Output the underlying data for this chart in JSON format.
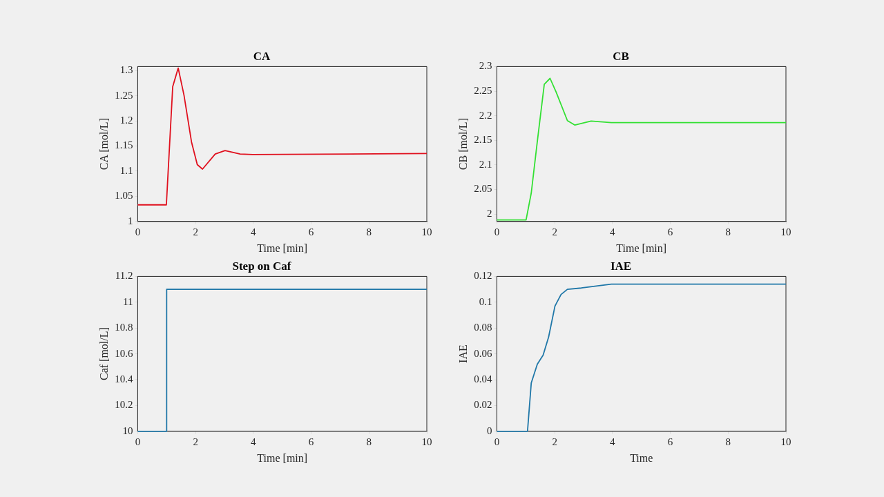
{
  "chart_data": [
    {
      "type": "line",
      "title": "CA",
      "xlabel": "Time [min]",
      "ylabel": "CA [mol/L]",
      "color": "#e0101e",
      "x": [
        0,
        0.99,
        1.21,
        1.4,
        1.6,
        1.86,
        2.06,
        2.24,
        2.68,
        3.02,
        3.54,
        3.97,
        10
      ],
      "values": [
        1.033,
        1.033,
        1.268,
        1.305,
        1.251,
        1.158,
        1.113,
        1.104,
        1.134,
        1.141,
        1.134,
        1.133,
        1.135
      ],
      "xlim": [
        0,
        10
      ],
      "ylim": [
        1,
        1.308
      ],
      "xticks": [
        0,
        2,
        4,
        6,
        8,
        10
      ],
      "yticks": [
        1,
        1.05,
        1.1,
        1.15,
        1.2,
        1.25,
        1.3
      ]
    },
    {
      "type": "line",
      "title": "CB",
      "xlabel": "Time [min]",
      "ylabel": "CB [mol/L]",
      "color": "#33e033",
      "x": [
        0,
        1.01,
        1.19,
        1.4,
        1.64,
        1.84,
        2.05,
        2.44,
        2.7,
        3.26,
        3.96,
        10
      ],
      "values": [
        1.988,
        1.988,
        2.043,
        2.148,
        2.264,
        2.276,
        2.248,
        2.19,
        2.181,
        2.189,
        2.186,
        2.186
      ],
      "xlim": [
        0,
        10
      ],
      "ylim": [
        1.985,
        2.3
      ],
      "xticks": [
        0,
        2,
        4,
        6,
        8,
        10
      ],
      "yticks": [
        2,
        2.05,
        2.1,
        2.15,
        2.2,
        2.25,
        2.3
      ]
    },
    {
      "type": "line",
      "title": "Step on Caf",
      "xlabel": "Time [min]",
      "ylabel": "Caf [mol/L]",
      "color": "#1f77a8",
      "x": [
        0,
        1,
        1,
        10
      ],
      "values": [
        10,
        10,
        11.1,
        11.1
      ],
      "xlim": [
        0,
        10
      ],
      "ylim": [
        10,
        11.2
      ],
      "xticks": [
        0,
        2,
        4,
        6,
        8,
        10
      ],
      "yticks": [
        10,
        10.2,
        10.4,
        10.6,
        10.8,
        11,
        11.2
      ]
    },
    {
      "type": "line",
      "title": "IAE",
      "xlabel": "Time",
      "ylabel": "IAE",
      "color": "#1f77a8",
      "x": [
        0,
        1.06,
        1.19,
        1.4,
        1.6,
        1.79,
        2.01,
        2.22,
        2.44,
        2.92,
        3.44,
        3.96,
        10
      ],
      "values": [
        0,
        0,
        0.0375,
        0.052,
        0.059,
        0.073,
        0.097,
        0.106,
        0.11,
        0.111,
        0.1125,
        0.114,
        0.114
      ],
      "xlim": [
        0,
        10
      ],
      "ylim": [
        0,
        0.12
      ],
      "xticks": [
        0,
        2,
        4,
        6,
        8,
        10
      ],
      "yticks": [
        0,
        0.02,
        0.04,
        0.06,
        0.08,
        0.1,
        0.12
      ]
    }
  ]
}
